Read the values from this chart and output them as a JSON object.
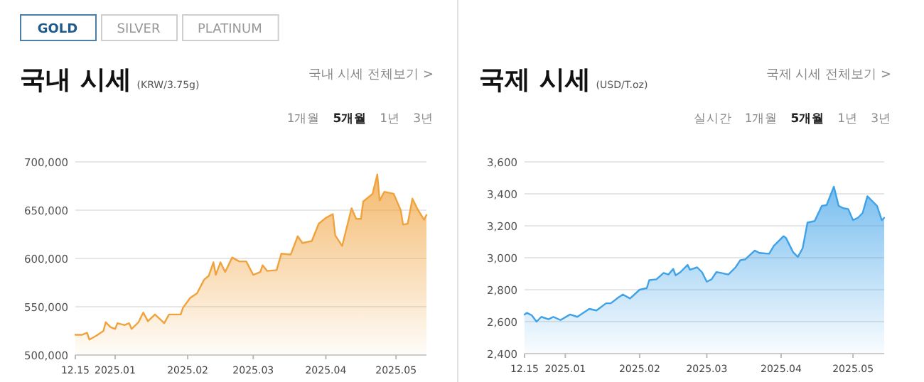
{
  "chart_data": [
    {
      "type": "area",
      "title": "국내 시세",
      "subtitle": "(KRW/3.75g)",
      "annotations": [
        "GOLD",
        "SILVER",
        "PLATINUM",
        "국내 시세 전체보기 >",
        "1개월",
        "5개월",
        "1년",
        "3년"
      ],
      "x": [
        "2024-12-15",
        "2024-12-18",
        "2024-12-20",
        "2024-12-21",
        "2024-12-24",
        "2024-12-27",
        "2024-12-28",
        "2024-12-30",
        "2025-01-01",
        "2025-01-02",
        "2025-01-05",
        "2025-01-07",
        "2025-01-08",
        "2025-01-11",
        "2025-01-13",
        "2025-01-15",
        "2025-01-18",
        "2025-01-22",
        "2025-01-24",
        "2025-01-29",
        "2025-01-30",
        "2025-02-02",
        "2025-02-05",
        "2025-02-08",
        "2025-02-10",
        "2025-02-12",
        "2025-02-13",
        "2025-02-15",
        "2025-02-17",
        "2025-02-20",
        "2025-02-23",
        "2025-02-26",
        "2025-03-01",
        "2025-03-04",
        "2025-03-05",
        "2025-03-07",
        "2025-03-11",
        "2025-03-13",
        "2025-03-17",
        "2025-03-20",
        "2025-03-22",
        "2025-03-26",
        "2025-03-29",
        "2025-04-01",
        "2025-04-04",
        "2025-04-05",
        "2025-04-08",
        "2025-04-12",
        "2025-04-14",
        "2025-04-16",
        "2025-04-17",
        "2025-04-21",
        "2025-04-23",
        "2025-04-24",
        "2025-04-26",
        "2025-04-30",
        "2025-05-03",
        "2025-05-04",
        "2025-05-06",
        "2025-05-08",
        "2025-05-10",
        "2025-05-13",
        "2025-05-14"
      ],
      "series": [
        {
          "color": "#f0a23c",
          "values": [
            521000,
            521000,
            523000,
            516000,
            520000,
            525000,
            534000,
            529000,
            527000,
            533000,
            531000,
            533000,
            527000,
            534000,
            544000,
            535000,
            542000,
            533000,
            542000,
            542000,
            549000,
            559000,
            564000,
            578000,
            582000,
            596000,
            583000,
            596000,
            586000,
            601000,
            597000,
            597000,
            583000,
            586000,
            593000,
            587000,
            588000,
            605000,
            604000,
            623000,
            616000,
            618000,
            636000,
            642000,
            646000,
            624000,
            613000,
            652000,
            641000,
            641000,
            659000,
            667000,
            687000,
            660000,
            669000,
            667000,
            650000,
            635000,
            636000,
            662000,
            652000,
            640000,
            645000
          ]
        }
      ],
      "xlim": [
        "2024-12-15",
        "2025-05-14"
      ],
      "xticks": [
        {
          "value": "2024-12-15",
          "label": "12.15"
        },
        {
          "value": "2025-01-01",
          "label": "2025.01"
        },
        {
          "value": "2025-02-01",
          "label": "2025.02"
        },
        {
          "value": "2025-03-01",
          "label": "2025.03"
        },
        {
          "value": "2025-04-01",
          "label": "2025.04"
        },
        {
          "value": "2025-05-01",
          "label": "2025.05"
        }
      ],
      "ylim": [
        500000,
        700000
      ],
      "yticks": [
        {
          "value": 500000,
          "label": "500,000"
        },
        {
          "value": 550000,
          "label": "550,000"
        },
        {
          "value": 600000,
          "label": "600,000"
        },
        {
          "value": 650000,
          "label": "650,000"
        },
        {
          "value": 700000,
          "label": "700,000"
        }
      ],
      "grid": "y"
    },
    {
      "type": "area",
      "title": "국제 시세",
      "subtitle": "(USD/T.oz)",
      "annotations": [
        "국제 시세 전체보기 >",
        "실시간",
        "1개월",
        "5개월",
        "1년",
        "3년"
      ],
      "x": [
        "2024-12-15",
        "2024-12-16",
        "2024-12-18",
        "2024-12-20",
        "2024-12-22",
        "2024-12-25",
        "2024-12-27",
        "2024-12-30",
        "2025-01-03",
        "2025-01-06",
        "2025-01-11",
        "2025-01-14",
        "2025-01-18",
        "2025-01-20",
        "2025-01-23",
        "2025-01-25",
        "2025-01-28",
        "2025-02-01",
        "2025-02-04",
        "2025-02-05",
        "2025-02-08",
        "2025-02-11",
        "2025-02-13",
        "2025-02-15",
        "2025-02-16",
        "2025-02-18",
        "2025-02-21",
        "2025-02-22",
        "2025-02-25",
        "2025-02-27",
        "2025-03-01",
        "2025-03-03",
        "2025-03-05",
        "2025-03-07",
        "2025-03-10",
        "2025-03-13",
        "2025-03-15",
        "2025-03-17",
        "2025-03-21",
        "2025-03-23",
        "2025-03-27",
        "2025-03-29",
        "2025-04-02",
        "2025-04-03",
        "2025-04-06",
        "2025-04-08",
        "2025-04-10",
        "2025-04-12",
        "2025-04-15",
        "2025-04-18",
        "2025-04-20",
        "2025-04-23",
        "2025-04-25",
        "2025-04-27",
        "2025-04-29",
        "2025-05-01",
        "2025-05-03",
        "2025-05-05",
        "2025-05-07",
        "2025-05-10",
        "2025-05-11",
        "2025-05-13",
        "2025-05-14"
      ],
      "series": [
        {
          "color": "#3fa2e8",
          "values": [
            2645,
            2655,
            2640,
            2600,
            2630,
            2615,
            2630,
            2610,
            2645,
            2630,
            2680,
            2670,
            2715,
            2715,
            2750,
            2770,
            2745,
            2800,
            2810,
            2860,
            2865,
            2905,
            2895,
            2930,
            2890,
            2910,
            2955,
            2925,
            2940,
            2910,
            2850,
            2865,
            2910,
            2905,
            2895,
            2940,
            2985,
            2990,
            3045,
            3030,
            3025,
            3075,
            3135,
            3125,
            3035,
            3005,
            3060,
            3220,
            3230,
            3325,
            3330,
            3445,
            3325,
            3310,
            3305,
            3235,
            3250,
            3280,
            3385,
            3340,
            3325,
            3235,
            3250
          ]
        }
      ],
      "xlim": [
        "2024-12-15",
        "2025-05-14"
      ],
      "xticks": [
        {
          "value": "2024-12-15",
          "label": "12.15"
        },
        {
          "value": "2025-01-01",
          "label": "2025.01"
        },
        {
          "value": "2025-02-01",
          "label": "2025.02"
        },
        {
          "value": "2025-03-01",
          "label": "2025.03"
        },
        {
          "value": "2025-04-01",
          "label": "2025.04"
        },
        {
          "value": "2025-05-01",
          "label": "2025.05"
        }
      ],
      "ylim": [
        2400,
        3600
      ],
      "yticks": [
        {
          "value": 2400,
          "label": "2,400"
        },
        {
          "value": 2600,
          "label": "2,600"
        },
        {
          "value": 2800,
          "label": "2,800"
        },
        {
          "value": 3000,
          "label": "3,000"
        },
        {
          "value": 3200,
          "label": "3,200"
        },
        {
          "value": 3400,
          "label": "3,400"
        },
        {
          "value": 3600,
          "label": "3,600"
        }
      ],
      "grid": "y"
    }
  ]
}
